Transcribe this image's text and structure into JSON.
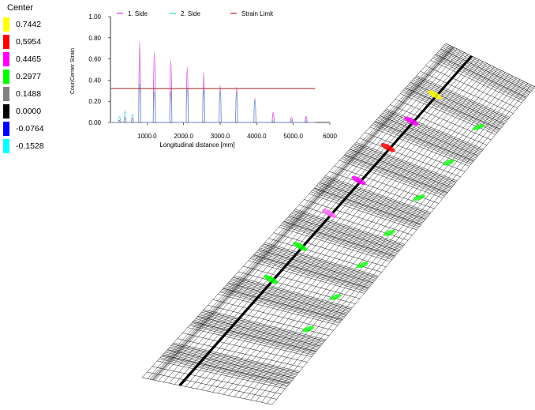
{
  "legend": {
    "title": "Center",
    "items": [
      {
        "label": "0.7442",
        "color": "#ffff00"
      },
      {
        "label": "0,5954",
        "color": "#ff0000"
      },
      {
        "label": "0.4465",
        "color": "#ff00ff"
      },
      {
        "label": "0.2977",
        "color": "#00ff00"
      },
      {
        "label": "0.1488",
        "color": "#808080"
      },
      {
        "label": "0.0000",
        "color": "#000000"
      },
      {
        "label": "-0.0764",
        "color": "#0000ff"
      },
      {
        "label": "-0.1528",
        "color": "#00ffff"
      }
    ]
  },
  "chart_data": {
    "type": "line",
    "title": "",
    "xlabel": "Longitudinal distance [mm]",
    "ylabel": "Cour/Center Strain",
    "xlim": [
      0,
      6000
    ],
    "ylim": [
      0,
      1.0
    ],
    "x_ticks": [
      1000,
      2000,
      3000,
      4000,
      5000,
      6000
    ],
    "x_tick_labels": [
      "1000.0",
      "2000.0",
      "3000.0",
      "4000.0",
      "5000.0",
      "6000"
    ],
    "y_ticks": [
      0,
      0.2,
      0.4,
      0.6,
      0.8,
      1.0
    ],
    "y_tick_labels": [
      "0.00",
      "0.20",
      "0.40",
      "0.60",
      "0.80",
      "1.00"
    ],
    "grid": false,
    "legend_position": "top",
    "series": [
      {
        "name": "1. Side",
        "color": "#cc33cc",
        "peaks": [
          [
            250,
            0.02
          ],
          [
            400,
            0.05
          ],
          [
            600,
            0.04
          ],
          [
            800,
            0.8
          ],
          [
            1200,
            0.7
          ],
          [
            1650,
            0.62
          ],
          [
            2100,
            0.55
          ],
          [
            2550,
            0.5
          ],
          [
            3000,
            0.37
          ],
          [
            3450,
            0.35
          ],
          [
            3950,
            0.24
          ],
          [
            4450,
            0.1
          ],
          [
            4950,
            0.05
          ],
          [
            5350,
            0.06
          ]
        ]
      },
      {
        "name": "2. Side",
        "color": "#33cccc",
        "peaks": [
          [
            250,
            0.06
          ],
          [
            400,
            0.12
          ],
          [
            600,
            0.08
          ],
          [
            800,
            0.38
          ],
          [
            1200,
            0.3
          ],
          [
            1650,
            0.3
          ],
          [
            2100,
            0.33
          ],
          [
            2550,
            0.32
          ],
          [
            3000,
            0.3
          ],
          [
            3450,
            0.29
          ],
          [
            3950,
            0.22
          ],
          [
            4450,
            0.02
          ],
          [
            4950,
            0.02
          ],
          [
            5350,
            0.02
          ]
        ]
      },
      {
        "name": "Strain Limit",
        "color": "#aa2222",
        "value": 0.32
      }
    ]
  }
}
